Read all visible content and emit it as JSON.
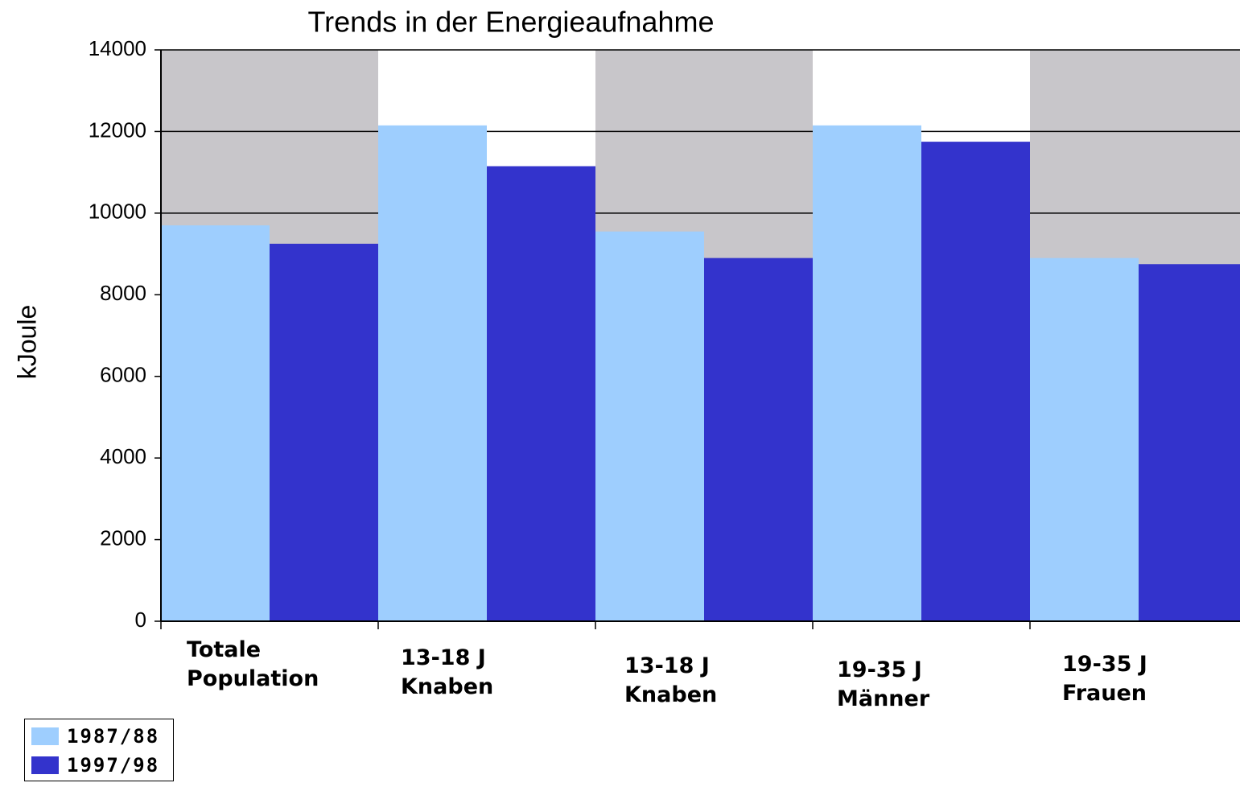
{
  "chart_data": {
    "type": "bar",
    "title": "Trends in der Energieaufnahme",
    "ylabel": "kJoule",
    "categories": [
      "Totale Population",
      "13-18 J Knaben",
      "13-18 J Knaben",
      "19-35 J Männer",
      "19-35 J Frauen"
    ],
    "series": [
      {
        "name": "1987/88",
        "color": "#9ecefe",
        "values": [
          9700,
          12150,
          9550,
          12150,
          8900
        ]
      },
      {
        "name": "1997/98",
        "color": "#3333cc",
        "values": [
          9250,
          11150,
          8900,
          11750,
          8750
        ]
      }
    ],
    "ylim": [
      0,
      14000
    ],
    "yticks": [
      0,
      2000,
      4000,
      6000,
      8000,
      10000,
      12000,
      14000
    ],
    "grid": true
  }
}
